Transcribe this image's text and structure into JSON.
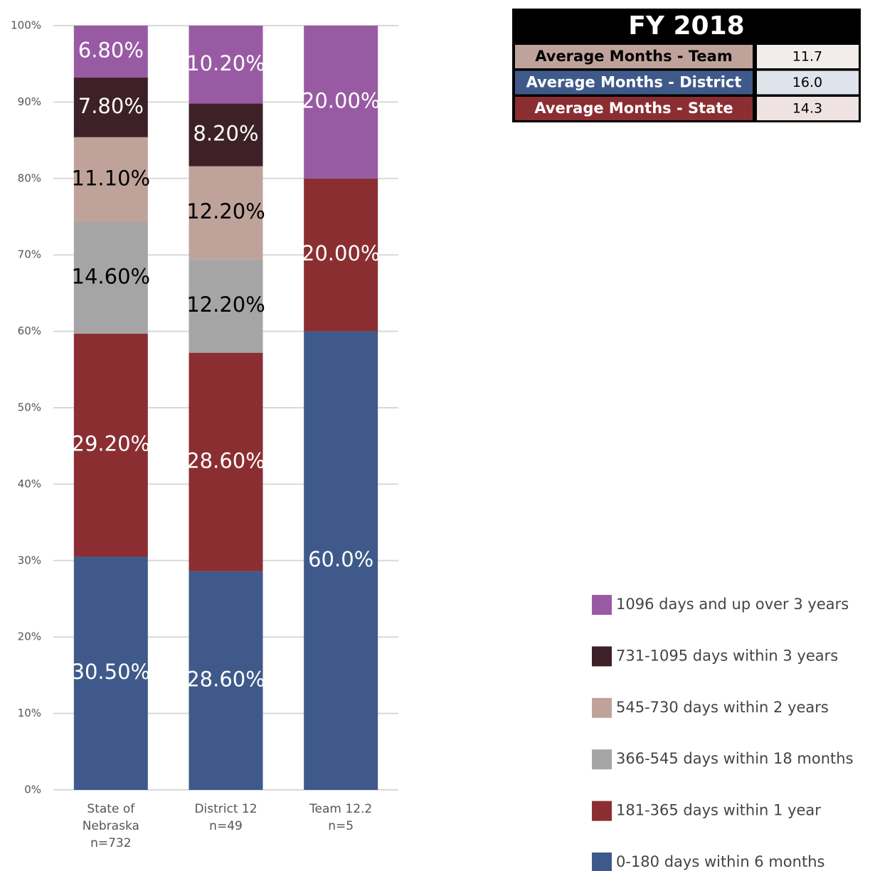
{
  "chart_data": {
    "type": "stacked_bar",
    "categories": [
      [
        "State of",
        "Nebraska",
        "n=732"
      ],
      [
        "District 12",
        "n=49"
      ],
      [
        "Team 12.2",
        "n=5"
      ]
    ],
    "series": [
      {
        "name": "0-180 days within 6 months",
        "color": "#3f5a8a",
        "label_color": "#ffffff",
        "values": [
          30.5,
          28.6,
          60.0
        ],
        "value_labels": [
          "30.50%",
          "28.60%",
          "60.0%"
        ]
      },
      {
        "name": "181-365 days within 1 year",
        "color": "#8b2e32",
        "label_color": "#ffffff",
        "values": [
          29.2,
          28.6,
          20.0
        ],
        "value_labels": [
          "29.20%",
          "28.60%",
          "20.00%"
        ]
      },
      {
        "name": "366-545 days within 18 months",
        "color": "#a5a5a5",
        "label_color": "#000000",
        "values": [
          14.6,
          12.2,
          null
        ],
        "value_labels": [
          "14.60%",
          "12.20%",
          null
        ]
      },
      {
        "name": "545-730 days within 2 years",
        "color": "#bfa39b",
        "label_color": "#000000",
        "values": [
          11.1,
          12.2,
          null
        ],
        "value_labels": [
          "11.10%",
          "12.20%",
          null
        ]
      },
      {
        "name": "731-1095 days within 3 years",
        "color": "#3e2128",
        "label_color": "#ffffff",
        "values": [
          7.8,
          8.2,
          null
        ],
        "value_labels": [
          "7.80%",
          "8.20%",
          null
        ]
      },
      {
        "name": "1096 days and up over 3 years",
        "color": "#985ba3",
        "label_color": "#ffffff",
        "values": [
          6.8,
          10.2,
          20.0
        ],
        "value_labels": [
          "6.80%",
          "10.20%",
          "20.00%"
        ]
      }
    ],
    "ylim": [
      0,
      100
    ],
    "yticks": [
      {
        "value": 0,
        "label": "0%"
      },
      {
        "value": 10,
        "label": "10%"
      },
      {
        "value": 20,
        "label": "20%"
      },
      {
        "value": 30,
        "label": "30%"
      },
      {
        "value": 40,
        "label": "40%"
      },
      {
        "value": 50,
        "label": "50%"
      },
      {
        "value": 60,
        "label": "60%"
      },
      {
        "value": 70,
        "label": "70%"
      },
      {
        "value": 80,
        "label": "80%"
      },
      {
        "value": 90,
        "label": "90%"
      },
      {
        "value": 100,
        "label": "100%"
      }
    ],
    "grid": true
  },
  "table": {
    "title": "FY 2018",
    "rows": [
      {
        "label": "Average Months - Team",
        "value": "11.7",
        "color": "#bfa39b",
        "label_color": "#000000",
        "cell_color": "#f2ecea"
      },
      {
        "label": "Average Months - District",
        "value": "16.0",
        "color": "#3f5a8a",
        "label_color": "#ffffff",
        "cell_color": "#dfe3ec"
      },
      {
        "label": "Average Months - State",
        "value": "14.3",
        "color": "#8b2e32",
        "label_color": "#ffffff",
        "cell_color": "#efe2e2"
      }
    ]
  }
}
